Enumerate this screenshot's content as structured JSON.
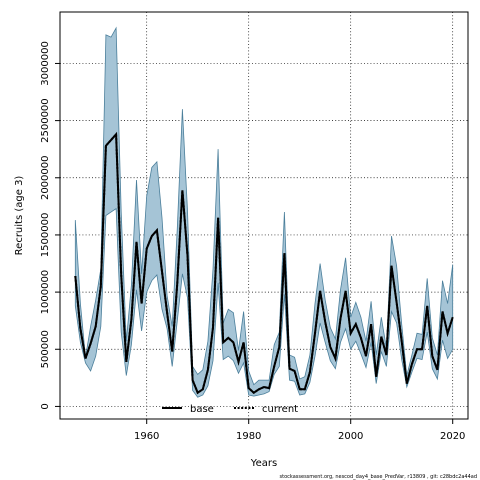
{
  "chart_data": {
    "type": "area",
    "xlabel": "Years",
    "ylabel": "Recruits (age 3)",
    "xlim": [
      1943,
      2023
    ],
    "ylim": [
      -110000,
      3450000
    ],
    "xticks": [
      1960,
      1980,
      2000,
      2020
    ],
    "yticks": [
      0,
      500000,
      1000000,
      1500000,
      2000000,
      2500000,
      3000000
    ],
    "grid": true,
    "legend_position": "bottom-center",
    "footer": "stockassessment.org, nescod_day4_base_PredVar, r13809 , git: c28bdc2a44ad",
    "band_color": "#a5c4d6",
    "band_edge_color": "#4b7f9b",
    "years": [
      1946,
      1947,
      1948,
      1949,
      1950,
      1951,
      1952,
      1953,
      1954,
      1955,
      1956,
      1957,
      1958,
      1959,
      1960,
      1961,
      1962,
      1963,
      1964,
      1965,
      1966,
      1967,
      1968,
      1969,
      1970,
      1971,
      1972,
      1973,
      1974,
      1975,
      1976,
      1977,
      1978,
      1979,
      1980,
      1981,
      1982,
      1983,
      1984,
      1985,
      1986,
      1987,
      1988,
      1989,
      1990,
      1991,
      1992,
      1993,
      1994,
      1995,
      1996,
      1997,
      1998,
      1999,
      2000,
      2001,
      2002,
      2003,
      2004,
      2005,
      2006,
      2007,
      2008,
      2009,
      2010,
      2011,
      2012,
      2013,
      2014,
      2015,
      2016,
      2017,
      2018,
      2019,
      2020
    ],
    "ci_upper": [
      1630000,
      900000,
      430000,
      700000,
      930000,
      1200000,
      3250000,
      3230000,
      3310000,
      1700000,
      570000,
      1060000,
      1980000,
      1160000,
      1840000,
      2090000,
      2140000,
      1650000,
      970000,
      700000,
      1560000,
      2600000,
      1710000,
      350000,
      280000,
      320000,
      570000,
      1200000,
      2250000,
      730000,
      850000,
      820000,
      490000,
      830000,
      310000,
      190000,
      230000,
      230000,
      230000,
      540000,
      650000,
      1700000,
      450000,
      430000,
      240000,
      260000,
      450000,
      900000,
      1250000,
      930000,
      690000,
      590000,
      1020000,
      1300000,
      780000,
      910000,
      780000,
      570000,
      920000,
      450000,
      780000,
      510000,
      1490000,
      1230000,
      720000,
      270000,
      450000,
      640000,
      630000,
      1120000,
      600000,
      450000,
      1100000,
      900000,
      1240000
    ],
    "ci_lower": [
      880000,
      560000,
      380000,
      310000,
      440000,
      700000,
      1670000,
      1700000,
      1730000,
      650000,
      270000,
      540000,
      1020000,
      660000,
      1000000,
      1100000,
      1150000,
      850000,
      680000,
      350000,
      750000,
      1160000,
      950000,
      140000,
      80000,
      100000,
      180000,
      400000,
      1080000,
      410000,
      440000,
      400000,
      290000,
      380000,
      100000,
      90000,
      100000,
      110000,
      130000,
      280000,
      350000,
      980000,
      230000,
      220000,
      100000,
      110000,
      210000,
      440000,
      730000,
      560000,
      400000,
      330000,
      560000,
      680000,
      500000,
      570000,
      460000,
      340000,
      560000,
      200000,
      480000,
      350000,
      830000,
      730000,
      410000,
      170000,
      300000,
      420000,
      410000,
      650000,
      330000,
      240000,
      580000,
      420000,
      500000
    ],
    "series": [
      {
        "name": "base",
        "values": [
          1140000,
          680000,
          420000,
          550000,
          700000,
          1050000,
          2280000,
          2330000,
          2380000,
          1150000,
          390000,
          760000,
          1440000,
          900000,
          1380000,
          1490000,
          1540000,
          1180000,
          820000,
          480000,
          1080000,
          1890000,
          1320000,
          230000,
          120000,
          150000,
          320000,
          690000,
          1650000,
          560000,
          600000,
          560000,
          390000,
          560000,
          160000,
          120000,
          150000,
          170000,
          160000,
          350000,
          520000,
          1340000,
          330000,
          310000,
          150000,
          150000,
          300000,
          640000,
          1010000,
          740000,
          520000,
          420000,
          770000,
          1010000,
          640000,
          720000,
          600000,
          440000,
          720000,
          260000,
          610000,
          450000,
          1230000,
          910000,
          570000,
          200000,
          370000,
          500000,
          500000,
          880000,
          440000,
          320000,
          830000,
          640000,
          780000
        ]
      },
      {
        "name": "current",
        "values": [
          1140000,
          680000,
          420000,
          550000,
          700000,
          1050000,
          2280000,
          2330000,
          2380000,
          1150000,
          390000,
          760000,
          1440000,
          900000,
          1380000,
          1490000,
          1540000,
          1180000,
          820000,
          480000,
          1080000,
          1890000,
          1320000,
          230000,
          120000,
          150000,
          320000,
          690000,
          1650000,
          560000,
          600000,
          560000,
          390000,
          560000,
          160000,
          120000,
          150000,
          170000,
          160000,
          350000,
          520000,
          1340000,
          330000,
          310000,
          150000,
          150000,
          300000,
          640000,
          1010000,
          740000,
          520000,
          420000,
          770000,
          1010000,
          640000,
          720000,
          600000,
          440000,
          720000,
          260000,
          610000,
          450000,
          1230000,
          910000,
          570000,
          200000,
          370000,
          500000,
          500000,
          880000,
          440000,
          320000,
          830000,
          640000,
          780000
        ]
      }
    ]
  }
}
